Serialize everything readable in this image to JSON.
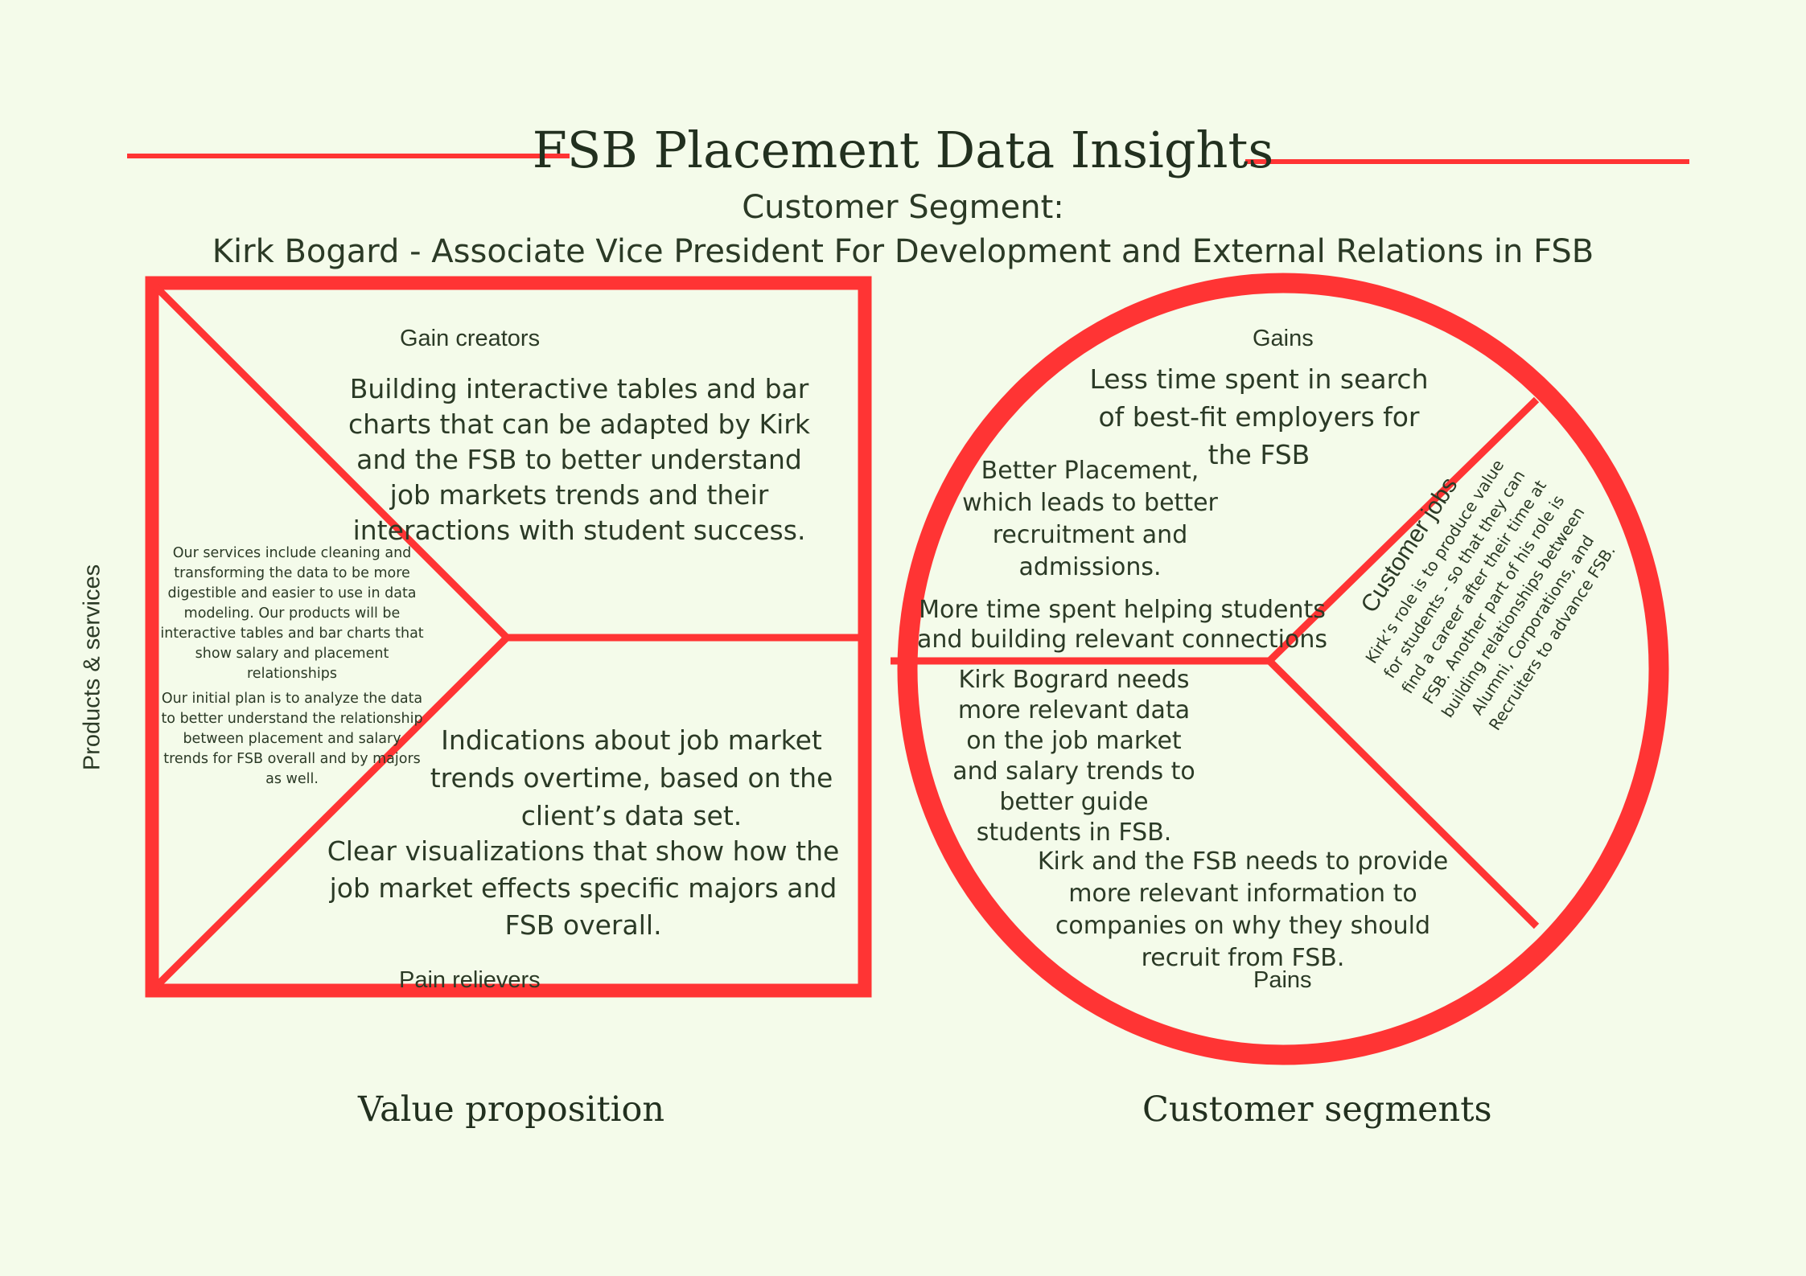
{
  "header": {
    "title": "FSB Placement Data Insights",
    "segment_label": "Customer Segment:",
    "segment_name": "Kirk Bogard - Associate Vice President For Development and External Relations in FSB"
  },
  "value_proposition": {
    "gain_creators_label": "Gain creators",
    "gain_creators_text": "Building interactive tables and bar charts that can be adapted by Kirk and the FSB to better understand job markets trends and their interactions with student success.",
    "products_label": "Products & services",
    "products_text_1": "Our services include cleaning and transforming the data to be more digestible and easier to use in data modeling. Our products will be interactive tables and bar charts that show salary and placement relationships",
    "products_text_2": "Our initial plan is to analyze the data to better understand the relationship between placement and salary trends for FSB overall and by majors as well.",
    "pain_relievers_text_1": "Indications about job market trends overtime, based on the client’s data set.",
    "pain_relievers_text_2": "Clear visualizations that show how the job market effects specific majors and FSB overall.",
    "pain_relievers_label": "Pain relievers",
    "footer_label": "Value proposition"
  },
  "customer_segment": {
    "gains_label": "Gains",
    "gains_text_1": "Less time spent in search of best-fit employers for the FSB",
    "gains_text_2": "Better Placement, which leads to better recruitment and admissions.",
    "gains_text_3": "More time spent helping students  and building relevant connections",
    "jobs_label": "Customer jobs",
    "jobs_text": "Kirk’s role is to produce value for students - so that they can find a career after their time at FSB. Another part of his role is building relationships between Alumni, Corporations, and Recruiters to advance FSB.",
    "pains_text_1": "Kirk Bogrard needs more relevant data on the job market and salary trends to better guide students in FSB.",
    "pains_text_2": "Kirk and the FSB needs to provide more relevant information to companies on why they should recruit from FSB.",
    "pains_label": "Pains",
    "footer_label": "Customer segments"
  },
  "colors": {
    "accent": "#ff3434",
    "background": "#f4fbea",
    "text": "#2b3a26"
  }
}
